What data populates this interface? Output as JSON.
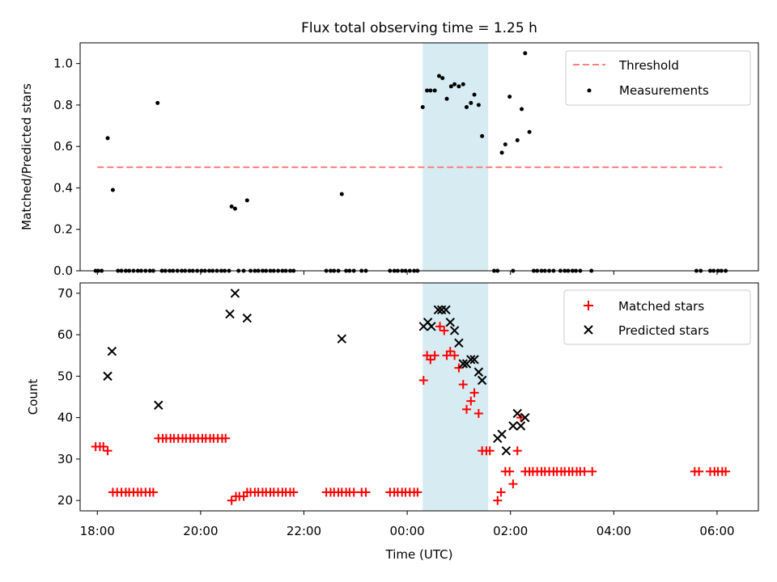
{
  "title": "Flux total observing time = 1.25 h",
  "colors": {
    "threshold": "#ff8080",
    "measure": "#000000",
    "matched": "#ff0000",
    "predicted": "#000000",
    "span": "#add8e6"
  },
  "chart_data": [
    {
      "type": "scatter",
      "ylabel": "Matched/Predicted stars",
      "ylim": [
        0,
        1.1
      ],
      "yticks": [
        0.0,
        0.2,
        0.4,
        0.6,
        0.8,
        1.0
      ],
      "ytick_labels": [
        "0.0",
        "0.2",
        "0.4",
        "0.6",
        "0.8",
        "1.0"
      ],
      "xlim": [
        "17:40",
        "06:48"
      ],
      "highlight_span": [
        "00:18",
        "01:34"
      ],
      "legend": [
        "Threshold",
        "Measurements"
      ],
      "legend_position": "top-right",
      "threshold": {
        "value": 0.5,
        "x": [
          "18:00",
          "06:06"
        ]
      },
      "measurements": [
        [
          "17:58",
          0
        ],
        [
          "18:01",
          0
        ],
        [
          "18:05",
          0
        ],
        [
          "18:12",
          0.64
        ],
        [
          "18:18",
          0.39
        ],
        [
          "18:24",
          0
        ],
        [
          "18:28",
          0
        ],
        [
          "18:33",
          0
        ],
        [
          "18:37",
          0
        ],
        [
          "18:42",
          0
        ],
        [
          "18:47",
          0
        ],
        [
          "18:51",
          0
        ],
        [
          "18:56",
          0
        ],
        [
          "19:01",
          0
        ],
        [
          "19:05",
          0
        ],
        [
          "19:10",
          0.81
        ],
        [
          "19:15",
          0
        ],
        [
          "19:19",
          0
        ],
        [
          "19:24",
          0
        ],
        [
          "19:28",
          0
        ],
        [
          "19:33",
          0
        ],
        [
          "19:38",
          0
        ],
        [
          "19:42",
          0
        ],
        [
          "19:47",
          0
        ],
        [
          "19:51",
          0
        ],
        [
          "19:56",
          0
        ],
        [
          "20:01",
          0
        ],
        [
          "20:05",
          0
        ],
        [
          "20:10",
          0
        ],
        [
          "20:14",
          0
        ],
        [
          "20:19",
          0
        ],
        [
          "20:24",
          0
        ],
        [
          "20:28",
          0
        ],
        [
          "20:33",
          0
        ],
        [
          "20:36",
          0.31
        ],
        [
          "20:40",
          0.3
        ],
        [
          "20:44",
          0
        ],
        [
          "20:50",
          0
        ],
        [
          "20:54",
          0.34
        ],
        [
          "20:58",
          0
        ],
        [
          "21:03",
          0
        ],
        [
          "21:07",
          0
        ],
        [
          "21:12",
          0
        ],
        [
          "21:16",
          0
        ],
        [
          "21:21",
          0
        ],
        [
          "21:25",
          0
        ],
        [
          "21:30",
          0
        ],
        [
          "21:35",
          0
        ],
        [
          "21:39",
          0
        ],
        [
          "21:44",
          0
        ],
        [
          "21:48",
          0
        ],
        [
          "22:26",
          0
        ],
        [
          "22:31",
          0
        ],
        [
          "22:35",
          0
        ],
        [
          "22:40",
          0
        ],
        [
          "22:44",
          0.37
        ],
        [
          "22:49",
          0
        ],
        [
          "22:53",
          0
        ],
        [
          "22:58",
          0
        ],
        [
          "23:07",
          0
        ],
        [
          "23:12",
          0
        ],
        [
          "23:40",
          0
        ],
        [
          "23:45",
          0
        ],
        [
          "23:49",
          0
        ],
        [
          "23:54",
          0
        ],
        [
          "23:58",
          0
        ],
        [
          "00:03",
          0
        ],
        [
          "00:08",
          0
        ],
        [
          "00:12",
          0
        ],
        [
          "00:18",
          0.79
        ],
        [
          "00:23",
          0.87
        ],
        [
          "00:27",
          0.87
        ],
        [
          "00:32",
          0.87
        ],
        [
          "00:37",
          0.94
        ],
        [
          "00:41",
          0.93
        ],
        [
          "00:46",
          0.83
        ],
        [
          "00:51",
          0.89
        ],
        [
          "00:55",
          0.9
        ],
        [
          "01:00",
          0.89
        ],
        [
          "01:05",
          0.9
        ],
        [
          "01:09",
          0.79
        ],
        [
          "01:14",
          0.81
        ],
        [
          "01:18",
          0.85
        ],
        [
          "01:23",
          0.8
        ],
        [
          "01:27",
          0.65
        ],
        [
          "01:41",
          0
        ],
        [
          "01:45",
          0
        ],
        [
          "01:50",
          0.57
        ],
        [
          "01:54",
          0.61
        ],
        [
          "01:59",
          0.84
        ],
        [
          "02:03",
          0
        ],
        [
          "02:08",
          0.63
        ],
        [
          "02:13",
          0.78
        ],
        [
          "02:17",
          1.05
        ],
        [
          "02:22",
          0.67
        ],
        [
          "02:27",
          0
        ],
        [
          "02:31",
          0
        ],
        [
          "02:36",
          0
        ],
        [
          "02:40",
          0
        ],
        [
          "02:45",
          0
        ],
        [
          "02:50",
          0
        ],
        [
          "02:58",
          0
        ],
        [
          "03:03",
          0
        ],
        [
          "03:07",
          0
        ],
        [
          "03:12",
          0
        ],
        [
          "03:16",
          0
        ],
        [
          "03:21",
          0
        ],
        [
          "03:34",
          0
        ],
        [
          "05:36",
          0
        ],
        [
          "05:41",
          0
        ],
        [
          "05:52",
          0
        ],
        [
          "05:56",
          0
        ],
        [
          "06:01",
          0
        ],
        [
          "06:05",
          0
        ],
        [
          "06:10",
          0
        ]
      ]
    },
    {
      "type": "scatter",
      "xlabel": "Time (UTC)",
      "ylabel": "Count",
      "ylim": [
        17.5,
        72.5
      ],
      "yticks": [
        20,
        30,
        40,
        50,
        60,
        70
      ],
      "ytick_labels": [
        "20",
        "30",
        "40",
        "50",
        "60",
        "70"
      ],
      "xlim": [
        "17:40",
        "06:48"
      ],
      "xticks": [
        "18:00",
        "20:00",
        "22:00",
        "00:00",
        "02:00",
        "04:00",
        "06:00"
      ],
      "highlight_span": [
        "00:18",
        "01:34"
      ],
      "legend": [
        "Matched stars",
        "Predicted stars"
      ],
      "legend_position": "top-right",
      "series": [
        {
          "name": "Matched stars",
          "points": [
            [
              "17:58",
              33
            ],
            [
              "18:03",
              33
            ],
            [
              "18:07",
              33
            ],
            [
              "18:12",
              32
            ],
            [
              "18:18",
              22
            ],
            [
              "18:23",
              22
            ],
            [
              "18:28",
              22
            ],
            [
              "18:33",
              22
            ],
            [
              "18:37",
              22
            ],
            [
              "18:42",
              22
            ],
            [
              "18:47",
              22
            ],
            [
              "18:51",
              22
            ],
            [
              "18:56",
              22
            ],
            [
              "19:01",
              22
            ],
            [
              "19:05",
              22
            ],
            [
              "19:11",
              35
            ],
            [
              "19:16",
              35
            ],
            [
              "19:20",
              35
            ],
            [
              "19:25",
              35
            ],
            [
              "19:29",
              35
            ],
            [
              "19:34",
              35
            ],
            [
              "19:39",
              35
            ],
            [
              "19:43",
              35
            ],
            [
              "19:48",
              35
            ],
            [
              "19:52",
              35
            ],
            [
              "19:57",
              35
            ],
            [
              "20:02",
              35
            ],
            [
              "20:06",
              35
            ],
            [
              "20:11",
              35
            ],
            [
              "20:15",
              35
            ],
            [
              "20:20",
              35
            ],
            [
              "20:25",
              35
            ],
            [
              "20:29",
              35
            ],
            [
              "20:36",
              20
            ],
            [
              "20:41",
              21
            ],
            [
              "20:45",
              21
            ],
            [
              "20:50",
              21
            ],
            [
              "20:54",
              22
            ],
            [
              "20:58",
              22
            ],
            [
              "21:03",
              22
            ],
            [
              "21:07",
              22
            ],
            [
              "21:12",
              22
            ],
            [
              "21:16",
              22
            ],
            [
              "21:21",
              22
            ],
            [
              "21:25",
              22
            ],
            [
              "21:30",
              22
            ],
            [
              "21:35",
              22
            ],
            [
              "21:39",
              22
            ],
            [
              "21:44",
              22
            ],
            [
              "21:48",
              22
            ],
            [
              "22:26",
              22
            ],
            [
              "22:31",
              22
            ],
            [
              "22:35",
              22
            ],
            [
              "22:40",
              22
            ],
            [
              "22:44",
              22
            ],
            [
              "22:49",
              22
            ],
            [
              "22:53",
              22
            ],
            [
              "22:58",
              22
            ],
            [
              "23:07",
              22
            ],
            [
              "23:12",
              22
            ],
            [
              "23:40",
              22
            ],
            [
              "23:45",
              22
            ],
            [
              "23:49",
              22
            ],
            [
              "23:54",
              22
            ],
            [
              "23:58",
              22
            ],
            [
              "00:03",
              22
            ],
            [
              "00:08",
              22
            ],
            [
              "00:12",
              22
            ],
            [
              "00:19",
              49
            ],
            [
              "00:23",
              55
            ],
            [
              "00:27",
              54
            ],
            [
              "00:32",
              55
            ],
            [
              "00:38",
              62
            ],
            [
              "00:43",
              61
            ],
            [
              "00:46",
              55
            ],
            [
              "00:50",
              56
            ],
            [
              "00:55",
              55
            ],
            [
              "01:00",
              52
            ],
            [
              "01:05",
              48
            ],
            [
              "01:09",
              42
            ],
            [
              "01:14",
              44
            ],
            [
              "01:18",
              46
            ],
            [
              "01:23",
              41
            ],
            [
              "01:27",
              32
            ],
            [
              "01:32",
              32
            ],
            [
              "01:36",
              32
            ],
            [
              "01:45",
              20
            ],
            [
              "01:49",
              22
            ],
            [
              "01:54",
              27
            ],
            [
              "01:59",
              27
            ],
            [
              "02:03",
              24
            ],
            [
              "02:08",
              32
            ],
            [
              "02:12",
              40
            ],
            [
              "02:17",
              27
            ],
            [
              "02:22",
              27
            ],
            [
              "02:26",
              27
            ],
            [
              "02:31",
              27
            ],
            [
              "02:36",
              27
            ],
            [
              "02:40",
              27
            ],
            [
              "02:45",
              27
            ],
            [
              "02:50",
              27
            ],
            [
              "02:54",
              27
            ],
            [
              "02:59",
              27
            ],
            [
              "03:03",
              27
            ],
            [
              "03:08",
              27
            ],
            [
              "03:12",
              27
            ],
            [
              "03:17",
              27
            ],
            [
              "03:21",
              27
            ],
            [
              "03:26",
              27
            ],
            [
              "03:35",
              27
            ],
            [
              "05:34",
              27
            ],
            [
              "05:39",
              27
            ],
            [
              "05:52",
              27
            ],
            [
              "05:57",
              27
            ],
            [
              "06:01",
              27
            ],
            [
              "06:06",
              27
            ],
            [
              "06:10",
              27
            ]
          ]
        },
        {
          "name": "Predicted stars",
          "points": [
            [
              "18:12",
              50
            ],
            [
              "18:17",
              56
            ],
            [
              "19:11",
              43
            ],
            [
              "20:34",
              65
            ],
            [
              "20:40",
              70
            ],
            [
              "20:54",
              64
            ],
            [
              "22:44",
              59
            ],
            [
              "00:19",
              62
            ],
            [
              "00:24",
              63
            ],
            [
              "00:28",
              62
            ],
            [
              "00:36",
              66
            ],
            [
              "00:40",
              66
            ],
            [
              "00:45",
              66
            ],
            [
              "00:50",
              63
            ],
            [
              "00:55",
              61
            ],
            [
              "01:00",
              58
            ],
            [
              "01:05",
              53
            ],
            [
              "01:09",
              53
            ],
            [
              "01:14",
              54
            ],
            [
              "01:18",
              54
            ],
            [
              "01:23",
              51
            ],
            [
              "01:27",
              49
            ],
            [
              "01:45",
              35
            ],
            [
              "01:50",
              36
            ],
            [
              "01:55",
              32
            ],
            [
              "02:03",
              38
            ],
            [
              "02:08",
              41
            ],
            [
              "02:12",
              38
            ],
            [
              "02:17",
              40
            ]
          ]
        }
      ]
    }
  ]
}
